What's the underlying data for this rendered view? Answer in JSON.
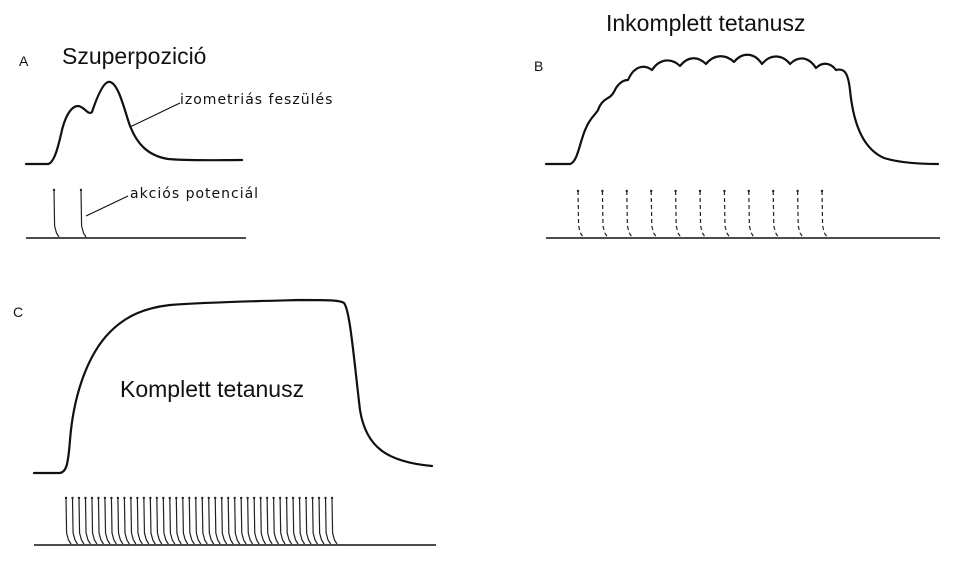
{
  "panels": {
    "A": {
      "letter": "A",
      "title": "Szuperpozició",
      "force_label": "izometriás feszülés",
      "ap_label": "akciós potenciál",
      "spike_count": 2
    },
    "B": {
      "letter": "B",
      "title": "Inkomplett tetanusz",
      "spike_count": 11
    },
    "C": {
      "letter": "C",
      "title": "Komplett tetanusz",
      "spike_count": 42
    }
  }
}
